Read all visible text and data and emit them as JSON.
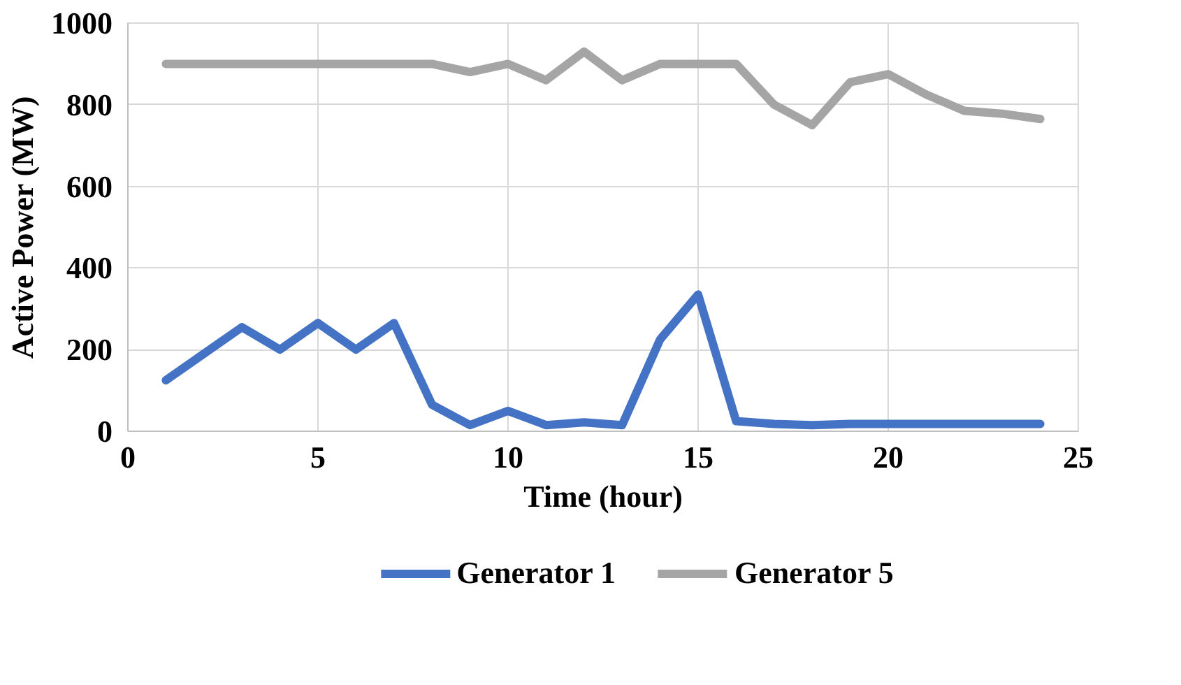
{
  "chart_data": {
    "type": "line",
    "xlabel": "Time (hour)",
    "ylabel": "Active Power (MW)",
    "x": [
      1,
      2,
      3,
      4,
      5,
      6,
      7,
      8,
      9,
      10,
      11,
      12,
      13,
      14,
      15,
      16,
      17,
      18,
      19,
      20,
      21,
      22,
      23,
      24
    ],
    "series": [
      {
        "name": "Generator 1",
        "color": "#4472c4",
        "values": [
          125,
          190,
          255,
          200,
          265,
          200,
          265,
          65,
          15,
          50,
          15,
          22,
          15,
          225,
          335,
          25,
          18,
          15,
          18,
          18,
          18,
          18,
          18,
          18
        ]
      },
      {
        "name": "Generator 5",
        "color": "#a5a5a5",
        "values": [
          900,
          900,
          900,
          900,
          900,
          900,
          900,
          900,
          880,
          900,
          860,
          930,
          860,
          900,
          900,
          900,
          800,
          750,
          855,
          875,
          825,
          785,
          778,
          765
        ]
      }
    ],
    "xlim": [
      0,
      25
    ],
    "xticks": [
      0,
      5,
      10,
      15,
      20,
      25
    ],
    "ylim": [
      0,
      1000
    ],
    "yticks": [
      0,
      200,
      400,
      600,
      800,
      1000
    ],
    "grid": true,
    "legend": "bottom",
    "marker": "none",
    "line_style": "solid"
  }
}
